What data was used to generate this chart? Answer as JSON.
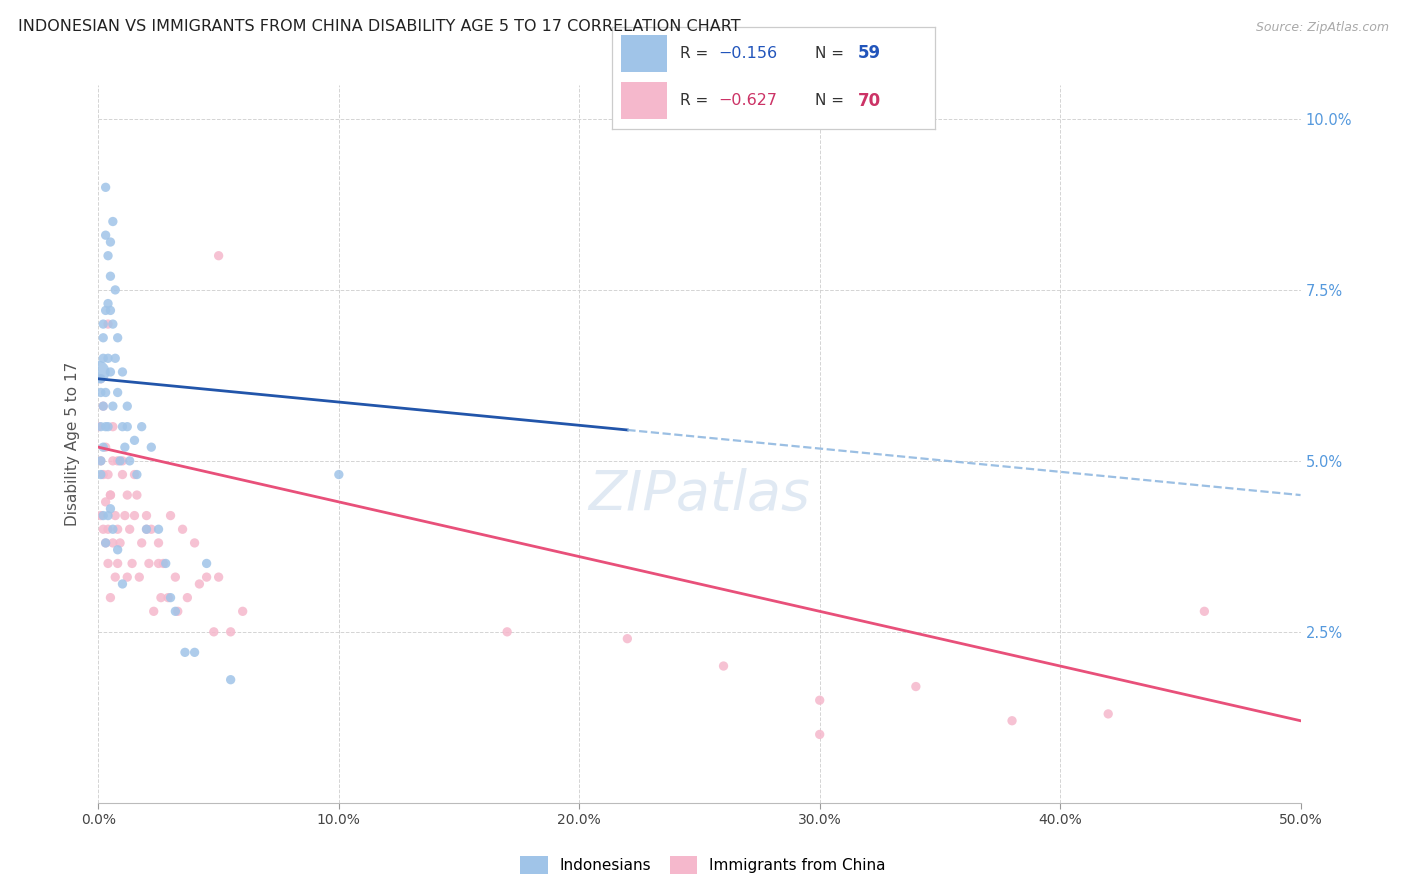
{
  "title": "INDONESIAN VS IMMIGRANTS FROM CHINA DISABILITY AGE 5 TO 17 CORRELATION CHART",
  "source": "Source: ZipAtlas.com",
  "ylabel": "Disability Age 5 to 17",
  "blue_color": "#a0c4e8",
  "pink_color": "#f5b8cc",
  "line_blue": "#2255aa",
  "line_pink": "#e8507a",
  "dashed_color": "#90b8e0",
  "background": "#ffffff",
  "grid_color": "#d0d0d0",
  "right_tick_color": "#5599dd",
  "indonesians_x": [
    0.0,
    0.001,
    0.001,
    0.001,
    0.001,
    0.001,
    0.002,
    0.002,
    0.002,
    0.002,
    0.002,
    0.003,
    0.003,
    0.003,
    0.003,
    0.003,
    0.004,
    0.004,
    0.004,
    0.004,
    0.005,
    0.005,
    0.005,
    0.005,
    0.006,
    0.006,
    0.006,
    0.007,
    0.007,
    0.008,
    0.008,
    0.009,
    0.01,
    0.01,
    0.011,
    0.012,
    0.013,
    0.015,
    0.016,
    0.018,
    0.02,
    0.022,
    0.025,
    0.028,
    0.03,
    0.032,
    0.036,
    0.04,
    0.045,
    0.055,
    0.002,
    0.003,
    0.004,
    0.005,
    0.006,
    0.008,
    0.01,
    0.012,
    0.1
  ],
  "indonesians_y": [
    0.063,
    0.06,
    0.055,
    0.05,
    0.062,
    0.048,
    0.068,
    0.058,
    0.052,
    0.07,
    0.065,
    0.083,
    0.072,
    0.06,
    0.055,
    0.09,
    0.08,
    0.073,
    0.065,
    0.055,
    0.082,
    0.072,
    0.063,
    0.077,
    0.07,
    0.058,
    0.085,
    0.075,
    0.065,
    0.068,
    0.06,
    0.05,
    0.055,
    0.063,
    0.052,
    0.058,
    0.05,
    0.053,
    0.048,
    0.055,
    0.04,
    0.052,
    0.04,
    0.035,
    0.03,
    0.028,
    0.022,
    0.022,
    0.035,
    0.018,
    0.042,
    0.038,
    0.042,
    0.043,
    0.04,
    0.037,
    0.032,
    0.055,
    0.048
  ],
  "indonesians_big": [
    0,
    58
  ],
  "indonesians_big_sizes": [
    250,
    50
  ],
  "china_x": [
    0.0,
    0.001,
    0.001,
    0.001,
    0.002,
    0.002,
    0.002,
    0.003,
    0.003,
    0.003,
    0.004,
    0.004,
    0.004,
    0.005,
    0.005,
    0.006,
    0.006,
    0.007,
    0.007,
    0.008,
    0.008,
    0.009,
    0.01,
    0.011,
    0.012,
    0.013,
    0.014,
    0.015,
    0.016,
    0.017,
    0.018,
    0.02,
    0.021,
    0.022,
    0.023,
    0.025,
    0.026,
    0.027,
    0.029,
    0.03,
    0.032,
    0.033,
    0.035,
    0.037,
    0.04,
    0.042,
    0.045,
    0.048,
    0.05,
    0.055,
    0.06,
    0.004,
    0.005,
    0.006,
    0.008,
    0.01,
    0.012,
    0.015,
    0.02,
    0.025,
    0.17,
    0.22,
    0.26,
    0.3,
    0.34,
    0.38,
    0.42,
    0.46,
    0.05,
    0.3
  ],
  "china_y": [
    0.055,
    0.05,
    0.062,
    0.042,
    0.058,
    0.048,
    0.04,
    0.052,
    0.044,
    0.038,
    0.048,
    0.04,
    0.035,
    0.045,
    0.03,
    0.055,
    0.038,
    0.042,
    0.033,
    0.04,
    0.035,
    0.038,
    0.05,
    0.042,
    0.045,
    0.04,
    0.035,
    0.042,
    0.045,
    0.033,
    0.038,
    0.042,
    0.035,
    0.04,
    0.028,
    0.038,
    0.03,
    0.035,
    0.03,
    0.042,
    0.033,
    0.028,
    0.04,
    0.03,
    0.038,
    0.032,
    0.033,
    0.025,
    0.033,
    0.025,
    0.028,
    0.07,
    0.045,
    0.05,
    0.05,
    0.048,
    0.033,
    0.048,
    0.04,
    0.035,
    0.025,
    0.024,
    0.02,
    0.015,
    0.017,
    0.012,
    0.013,
    0.028,
    0.08,
    0.01
  ],
  "xlim": [
    0.0,
    0.5
  ],
  "ylim": [
    0.0,
    0.105
  ],
  "xtick_vals": [
    0.0,
    0.1,
    0.2,
    0.3,
    0.4,
    0.5
  ],
  "xtick_labels": [
    "0.0%",
    "10.0%",
    "20.0%",
    "30.0%",
    "40.0%",
    "50.0%"
  ],
  "ytick_vals": [
    0.0,
    0.025,
    0.05,
    0.075,
    0.1
  ],
  "right_ytick_labels": [
    "10.0%",
    "7.5%",
    "5.0%",
    "2.5%"
  ],
  "right_ytick_vals": [
    0.1,
    0.075,
    0.05,
    0.025
  ],
  "bottom_labels": [
    "Indonesians",
    "Immigrants from China"
  ],
  "blue_line_solid_end": 0.22,
  "watermark": "ZIPatlas"
}
